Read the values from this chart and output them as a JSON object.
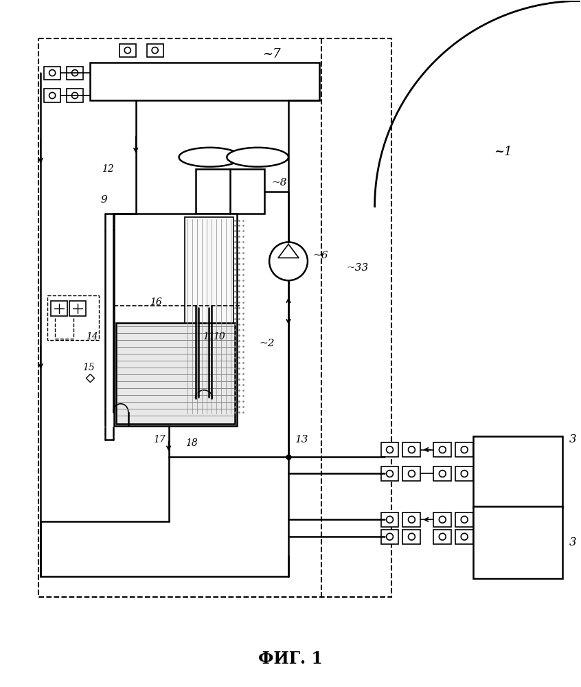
{
  "title": "ФИГ. 1",
  "bg": "#ffffff",
  "lc": "#000000",
  "fig_w": 8.46,
  "fig_h": 10.0
}
